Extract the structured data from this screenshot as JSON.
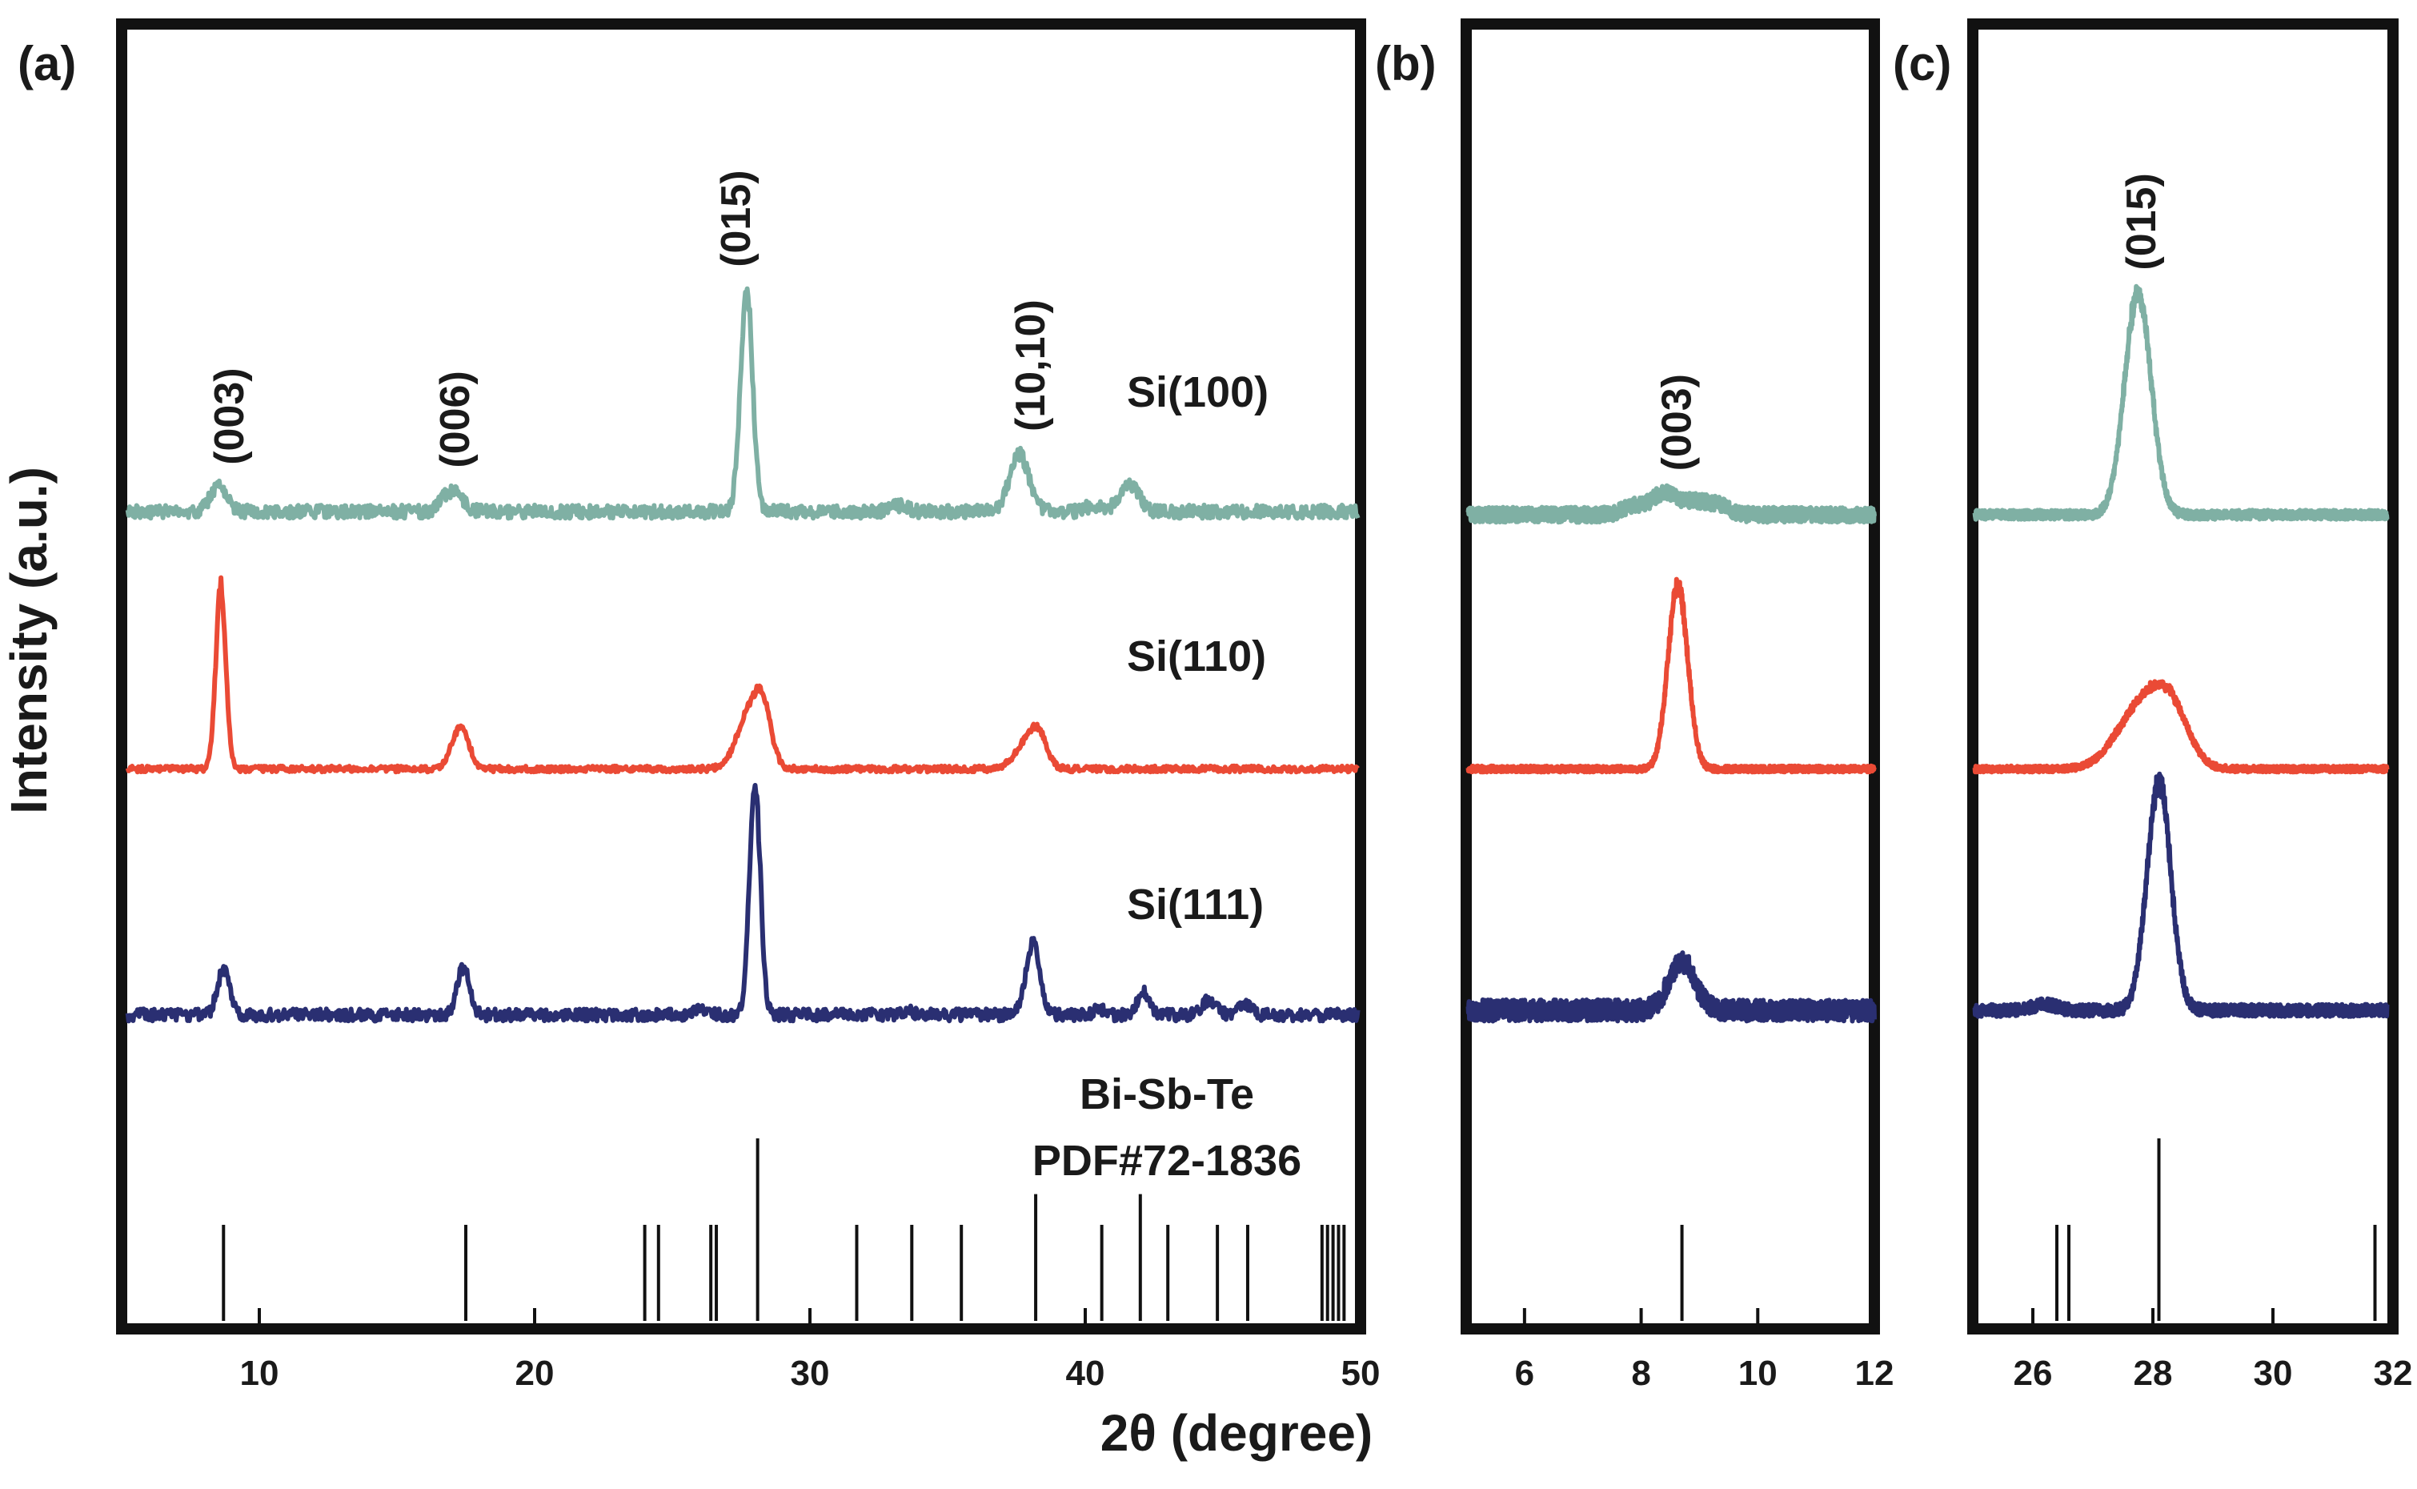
{
  "figure": {
    "ylabel": "Intensity (a.u.)",
    "xlabel": "2θ (degree)"
  },
  "colors": {
    "si100": "#7fb0a4",
    "si110": "#ea4a35",
    "si111": "#2a2f72",
    "frame": "#111111",
    "ref": "#111111"
  },
  "chart_data": [
    {
      "panel_label": "(a)",
      "type": "line",
      "xlim": [
        5,
        50
      ],
      "xticks": [
        10,
        20,
        30,
        40,
        50
      ],
      "xlabel": "2θ (degree)",
      "ylabel": "Intensity (a.u.)",
      "series": [
        {
          "name": "Si(100)",
          "color_key": "si100",
          "baseline": 0.6,
          "noise": 0.22,
          "peaks": [
            [
              8.5,
              0.8,
              0.3
            ],
            [
              17.0,
              0.7,
              0.35
            ],
            [
              27.7,
              7.3,
              0.22
            ],
            [
              37.6,
              1.9,
              0.35
            ],
            [
              41.6,
              0.9,
              0.35
            ],
            [
              33.2,
              0.2,
              0.3
            ],
            [
              40.3,
              0.2,
              0.3
            ]
          ],
          "x_end": 49.9
        },
        {
          "name": "Si(110)",
          "color_key": "si110",
          "baseline": 0.3,
          "noise": 0.1,
          "peaks": [
            [
              8.6,
              6.0,
              0.18
            ],
            [
              17.3,
              1.4,
              0.3
            ],
            [
              27.8,
              1.8,
              0.45
            ],
            [
              28.3,
              1.5,
              0.3
            ],
            [
              37.9,
              0.8,
              0.45
            ],
            [
              38.3,
              0.8,
              0.3
            ]
          ],
          "x_end": 49.9
        },
        {
          "name": "Si(111)",
          "color_key": "si111",
          "baseline": 0.45,
          "noise": 0.2,
          "peaks": [
            [
              8.7,
              1.5,
              0.22
            ],
            [
              17.4,
              1.6,
              0.22
            ],
            [
              28.0,
              7.5,
              0.2
            ],
            [
              38.1,
              2.4,
              0.25
            ],
            [
              42.1,
              0.8,
              0.2
            ],
            [
              44.5,
              0.5,
              0.25
            ],
            [
              45.8,
              0.3,
              0.25
            ],
            [
              40.5,
              0.2,
              0.2
            ],
            [
              33.5,
              0.15,
              0.2
            ],
            [
              26.1,
              0.2,
              0.3
            ]
          ],
          "x_end": 49.9
        }
      ],
      "reference": {
        "name": "Bi-Sb-Te",
        "card": "PDF#72-1836",
        "lines": [
          [
            8.7,
            0.5
          ],
          [
            17.5,
            0.5
          ],
          [
            24.0,
            0.5
          ],
          [
            24.5,
            0.5
          ],
          [
            26.4,
            0.5
          ],
          [
            26.6,
            0.5
          ],
          [
            28.1,
            0.95
          ],
          [
            31.7,
            0.5
          ],
          [
            33.7,
            0.5
          ],
          [
            35.5,
            0.5
          ],
          [
            38.2,
            0.66
          ],
          [
            40.6,
            0.5
          ],
          [
            42.0,
            0.66
          ],
          [
            43.0,
            0.5
          ],
          [
            44.8,
            0.5
          ],
          [
            45.9,
            0.5
          ],
          [
            48.6,
            0.5
          ],
          [
            48.8,
            0.5
          ],
          [
            49.0,
            0.5
          ],
          [
            49.2,
            0.5
          ],
          [
            49.4,
            0.5
          ]
        ]
      },
      "annotations": [
        {
          "text": "(003)",
          "x": 8.9,
          "series": "Si(100)"
        },
        {
          "text": "(006)",
          "x": 17.1,
          "series": "Si(100)"
        },
        {
          "text": "(015)",
          "x": 27.3,
          "series": "Si(100)"
        },
        {
          "text": "(10,10)",
          "x": 38.0,
          "series": "Si(100)"
        }
      ]
    },
    {
      "panel_label": "(b)",
      "type": "line",
      "xlim": [
        5,
        12
      ],
      "xticks": [
        6,
        8,
        10,
        12
      ],
      "series": [
        {
          "name": "Si(100)",
          "color_key": "si100",
          "baseline": 0.5,
          "noise": 0.25,
          "peaks": [
            [
              8.4,
              0.7,
              0.2
            ],
            [
              8.9,
              0.4,
              0.2
            ],
            [
              7.9,
              0.3,
              0.2
            ],
            [
              9.3,
              0.3,
              0.2
            ]
          ],
          "x_end": 12
        },
        {
          "name": "Si(110)",
          "color_key": "si110",
          "baseline": 0.3,
          "noise": 0.1,
          "peaks": [
            [
              8.63,
              6.0,
              0.17
            ]
          ],
          "x_end": 12
        },
        {
          "name": "Si(111)",
          "color_key": "si111",
          "baseline": 0.6,
          "noise": 0.35,
          "peaks": [
            [
              8.7,
              1.6,
              0.22
            ]
          ],
          "x_end": 12
        }
      ],
      "reference": {
        "lines": [
          [
            8.7,
            0.5
          ]
        ]
      },
      "annotations": [
        {
          "text": "(003)",
          "x": 8.6,
          "series": "Si(100)"
        }
      ]
    },
    {
      "panel_label": "(c)",
      "type": "line",
      "xlim": [
        25,
        32
      ],
      "xticks": [
        26,
        28,
        30,
        32
      ],
      "series": [
        {
          "name": "Si(100)",
          "color_key": "si100",
          "baseline": 0.5,
          "noise": 0.15,
          "peaks": [
            [
              27.75,
              7.3,
              0.22
            ]
          ],
          "x_end": 31.9
        },
        {
          "name": "Si(110)",
          "color_key": "si110",
          "baseline": 0.3,
          "noise": 0.1,
          "peaks": [
            [
              27.8,
              2.0,
              0.4
            ],
            [
              28.3,
              1.6,
              0.3
            ]
          ],
          "x_end": 31.9
        },
        {
          "name": "Si(111)",
          "color_key": "si111",
          "baseline": 0.6,
          "noise": 0.2,
          "peaks": [
            [
              28.1,
              7.5,
              0.2
            ],
            [
              26.2,
              0.2,
              0.2
            ]
          ],
          "x_end": 31.9
        }
      ],
      "reference": {
        "lines": [
          [
            26.4,
            0.5
          ],
          [
            26.6,
            0.5
          ],
          [
            28.1,
            0.95
          ],
          [
            31.7,
            0.5
          ]
        ]
      },
      "annotations": [
        {
          "text": "(015)",
          "x": 27.8,
          "series": "Si(100)"
        }
      ]
    }
  ]
}
